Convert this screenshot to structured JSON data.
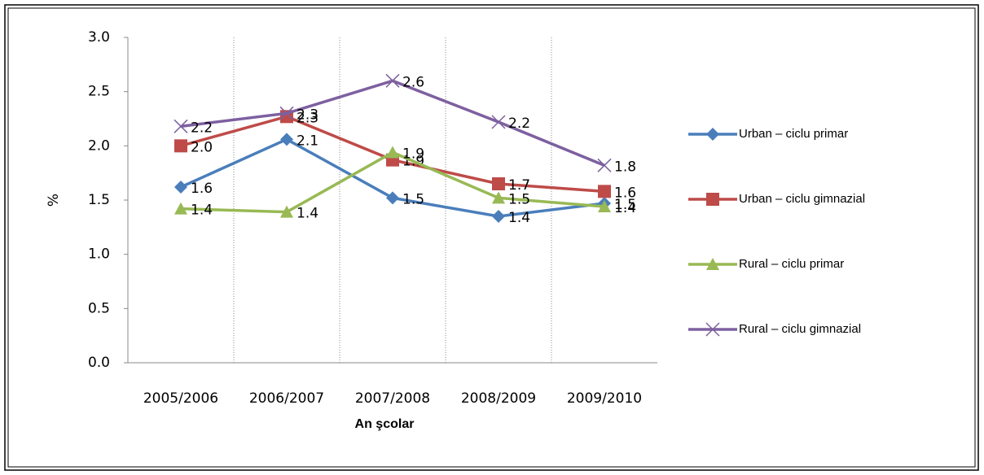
{
  "chart_data": {
    "type": "line",
    "x_label": "An şcolar",
    "y_label": "%",
    "categories": [
      "2005/2006",
      "2006/2007",
      "2007/2008",
      "2008/2009",
      "2009/2010"
    ],
    "series": [
      {
        "name": "Urban – ciclu primar",
        "color": "#4a7ebb",
        "marker": "diamond",
        "values": [
          1.62,
          2.06,
          1.52,
          1.35,
          1.47
        ],
        "value_labels": [
          "1.6",
          "2.1",
          "1.5",
          "1.4",
          "1.5"
        ]
      },
      {
        "name": "Urban – ciclu gimnazial",
        "color": "#be4b48",
        "marker": "square",
        "values": [
          2.0,
          2.27,
          1.87,
          1.65,
          1.58
        ],
        "value_labels": [
          "2.0",
          "2.3",
          "1.9",
          "1.7",
          "1.6"
        ]
      },
      {
        "name": "Rural – ciclu primar",
        "color": "#98b954",
        "marker": "triangle",
        "values": [
          1.42,
          1.39,
          1.94,
          1.52,
          1.44
        ],
        "value_labels": [
          "1.4",
          "1.4",
          "1.9",
          "1.5",
          "1.4"
        ]
      },
      {
        "name": "Rural – ciclu gimnazial",
        "color": "#7d60a0",
        "marker": "x",
        "values": [
          2.18,
          2.3,
          2.6,
          2.22,
          1.82
        ],
        "value_labels": [
          "2.2",
          "2.3",
          "2.6",
          "2.2",
          "1.8"
        ]
      }
    ],
    "ylim": [
      0,
      3
    ],
    "yticks": [
      {
        "value": 0,
        "label": "0.0"
      },
      0.5,
      {
        "value": 1,
        "label": "1.0"
      },
      1.5,
      {
        "value": 2,
        "label": "2.0"
      },
      2.5,
      {
        "value": 3,
        "label": "3.0"
      }
    ],
    "grid": "vertical-dotted",
    "legend": "right"
  }
}
